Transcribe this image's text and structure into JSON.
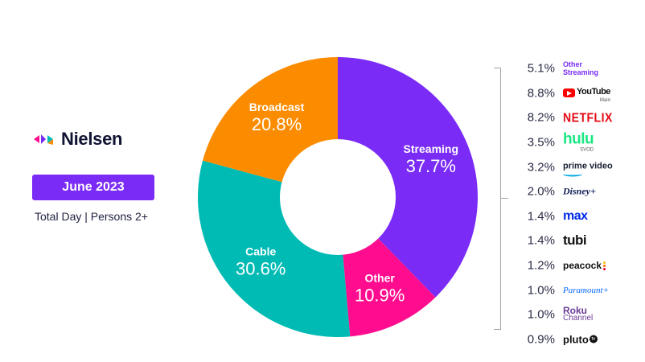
{
  "brand": {
    "name": "Nielsen"
  },
  "header": {
    "date": "June 2023",
    "subtitle": "Total Day | Persons 2+"
  },
  "chart_data": {
    "type": "pie",
    "style": "donut",
    "categories": [
      "Streaming",
      "Other",
      "Cable",
      "Broadcast"
    ],
    "values": [
      37.7,
      10.9,
      30.6,
      20.8
    ],
    "value_labels": [
      "37.7%",
      "10.9%",
      "30.6%",
      "20.8%"
    ],
    "colors": [
      "#7a2bf5",
      "#ff0d8e",
      "#00bbb4",
      "#fb8c00"
    ],
    "start_angle_deg": 0,
    "direction": "clockwise",
    "breakdown": {
      "of": "Streaming",
      "items": [
        {
          "name": "Other Streaming",
          "label": "5.1%",
          "value": 5.1,
          "logo": "other-streaming"
        },
        {
          "name": "YouTube",
          "sub": "Main",
          "label": "8.8%",
          "value": 8.8,
          "logo": "youtube"
        },
        {
          "name": "NETFLIX",
          "label": "8.2%",
          "value": 8.2,
          "logo": "netflix"
        },
        {
          "name": "hulu",
          "sub": "SVOD",
          "label": "3.5%",
          "value": 3.5,
          "logo": "hulu"
        },
        {
          "name": "prime video",
          "label": "3.2%",
          "value": 3.2,
          "logo": "prime-video"
        },
        {
          "name": "Disney+",
          "label": "2.0%",
          "value": 2.0,
          "logo": "disney-plus"
        },
        {
          "name": "max",
          "label": "1.4%",
          "value": 1.4,
          "logo": "max"
        },
        {
          "name": "tubi",
          "label": "1.4%",
          "value": 1.4,
          "logo": "tubi"
        },
        {
          "name": "peacock",
          "label": "1.2%",
          "value": 1.2,
          "logo": "peacock"
        },
        {
          "name": "Paramount+",
          "label": "1.0%",
          "value": 1.0,
          "logo": "paramount-plus"
        },
        {
          "name": "Roku Channel",
          "label": "1.0%",
          "value": 1.0,
          "logo": "roku-channel"
        },
        {
          "name": "pluto tv",
          "label": "0.9%",
          "value": 0.9,
          "logo": "pluto-tv"
        }
      ]
    }
  }
}
